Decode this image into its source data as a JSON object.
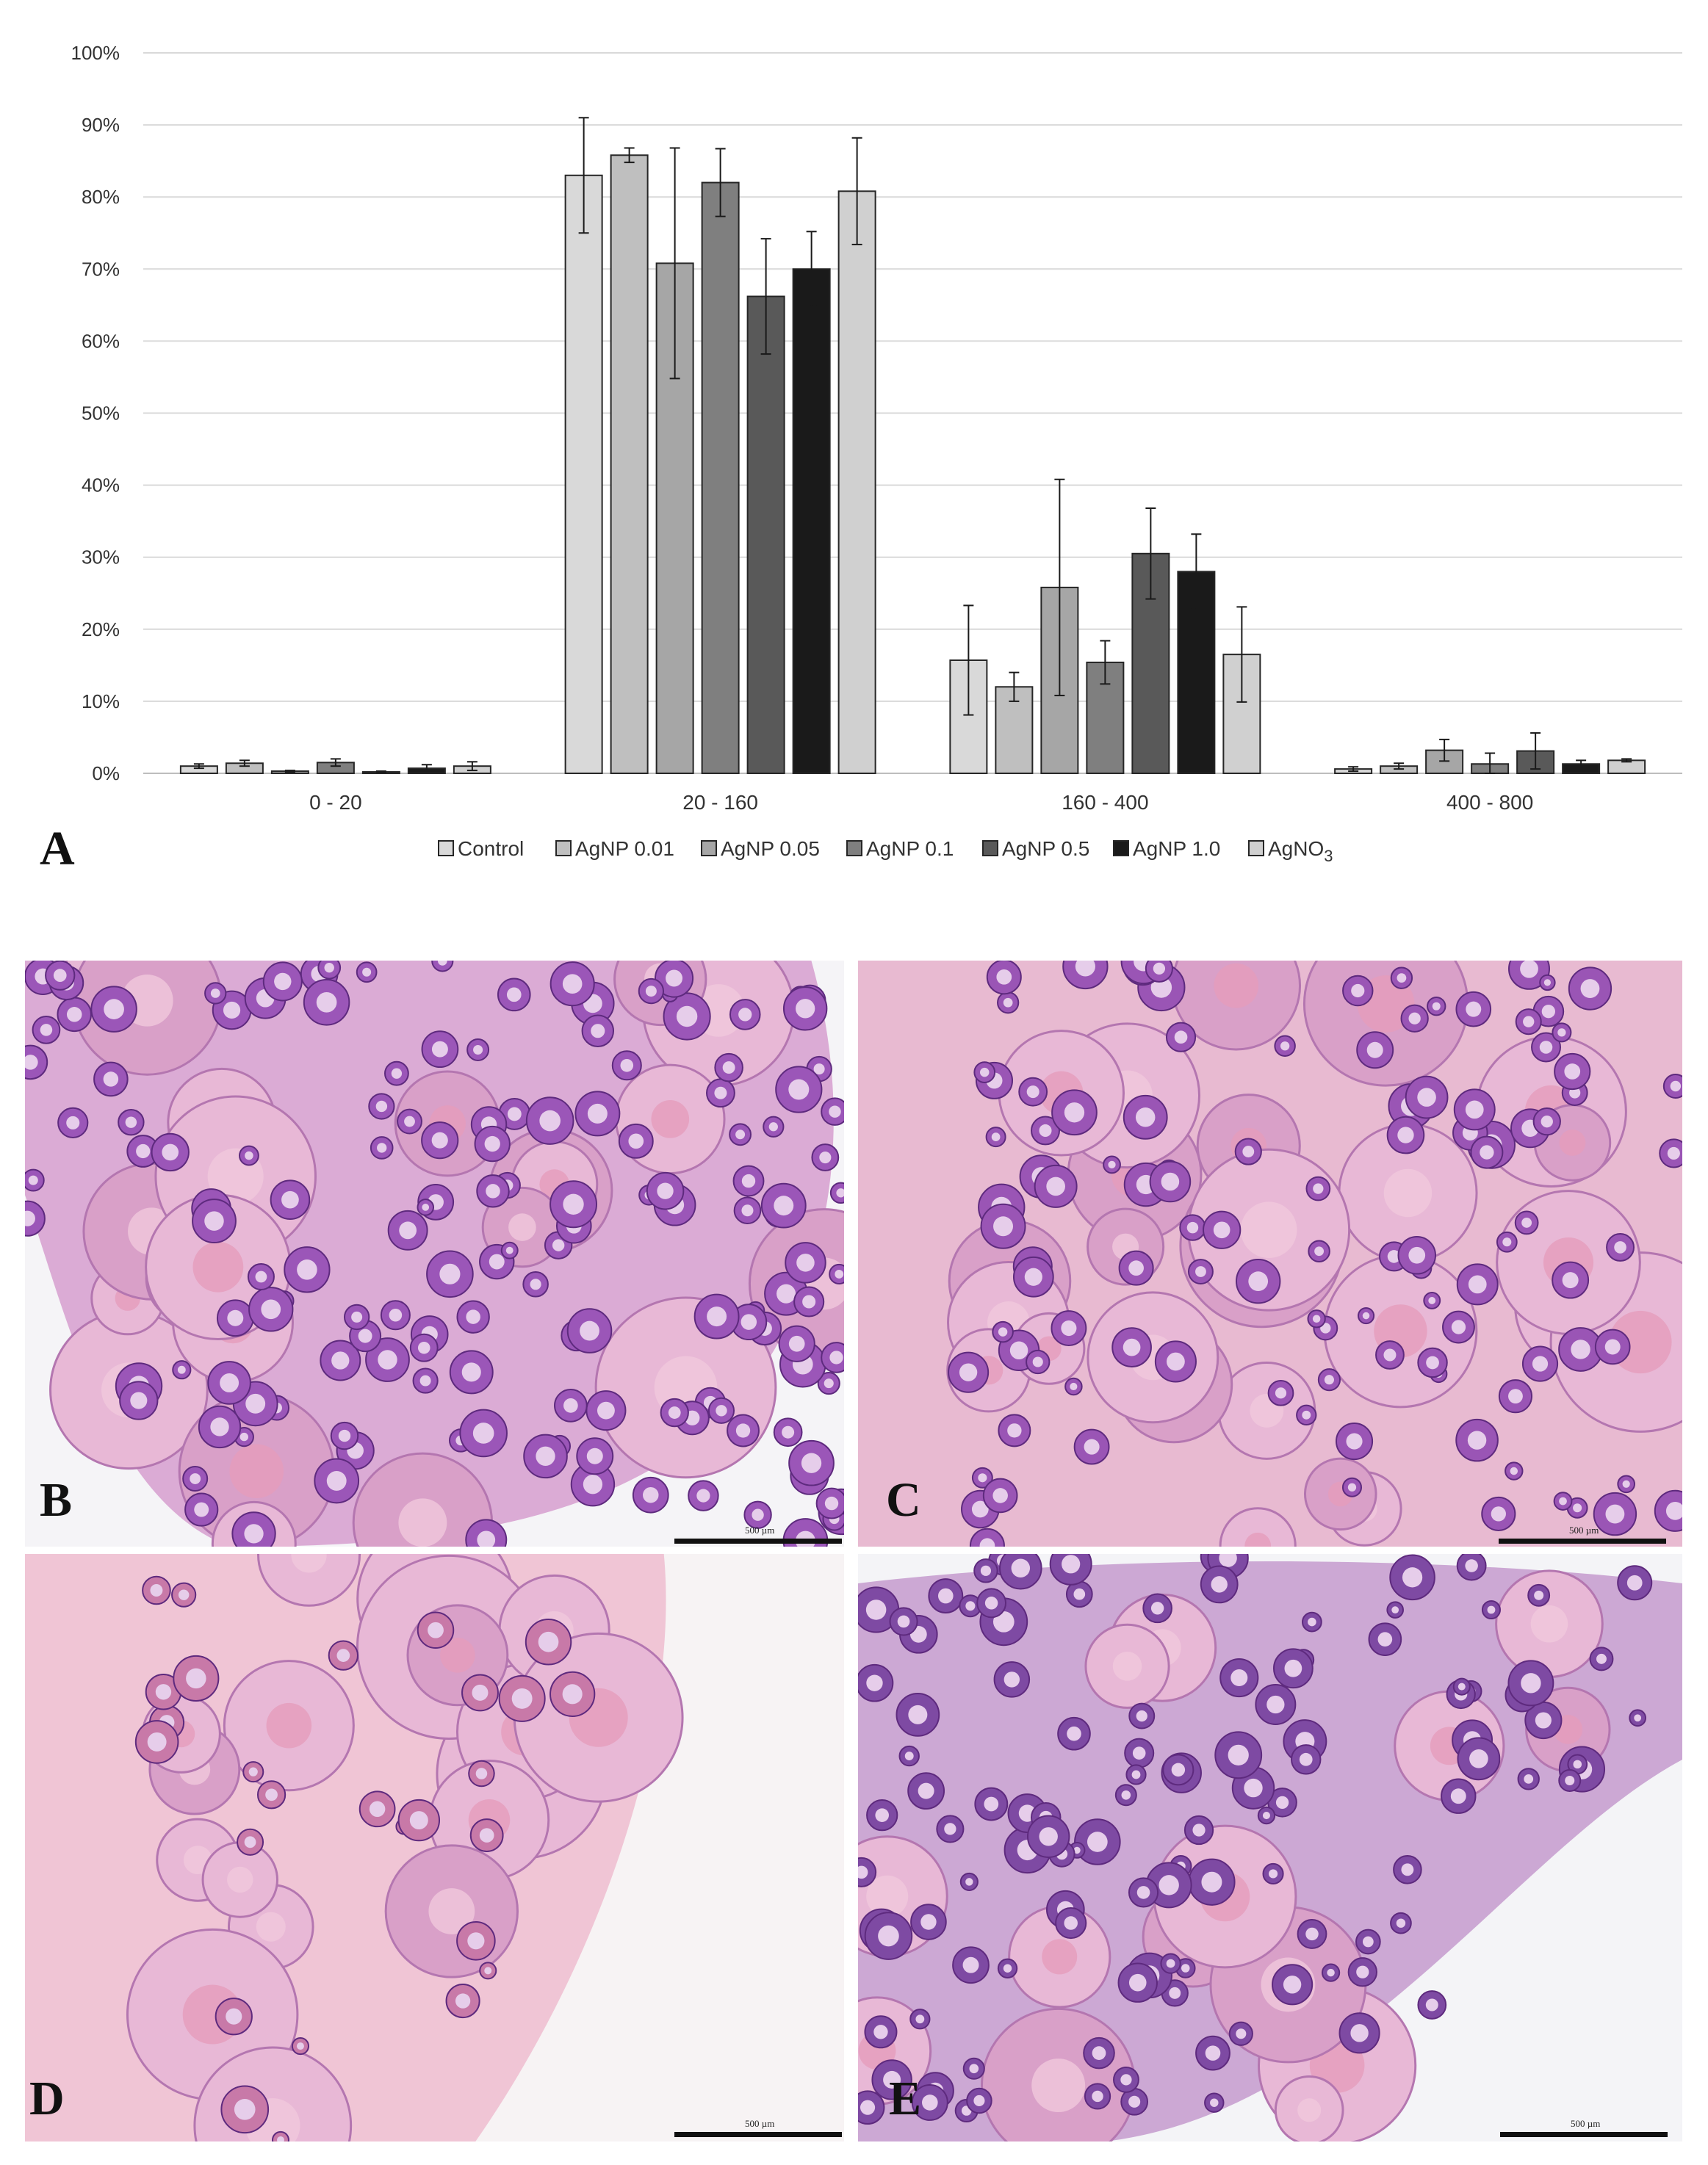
{
  "chart_data": {
    "type": "bar",
    "categories": [
      "0 - 20",
      "20 - 160",
      "160 - 400",
      "400 - 800"
    ],
    "ylim": [
      0,
      100
    ],
    "yticks": [
      "0%",
      "10%",
      "20%",
      "30%",
      "40%",
      "50%",
      "60%",
      "70%",
      "80%",
      "90%",
      "100%"
    ],
    "grid": true,
    "legend_position": "bottom",
    "error_bars": true,
    "series": [
      {
        "name": "Control",
        "color": "#d9d9d9",
        "values": [
          1.0,
          83.0,
          15.7,
          0.6
        ],
        "errors": [
          0.3,
          8.0,
          7.6,
          0.3
        ]
      },
      {
        "name": "AgNP 0.01",
        "color": "#bfbfbf",
        "values": [
          1.4,
          85.8,
          12.0,
          1.0
        ],
        "errors": [
          0.4,
          1.0,
          2.0,
          0.4
        ]
      },
      {
        "name": "AgNP 0.05",
        "color": "#a6a6a6",
        "values": [
          0.3,
          70.8,
          25.8,
          3.2
        ],
        "errors": [
          0.1,
          16.0,
          15.0,
          1.5
        ]
      },
      {
        "name": "AgNP 0.1",
        "color": "#7f7f7f",
        "values": [
          1.5,
          82.0,
          15.4,
          1.3
        ],
        "errors": [
          0.5,
          4.7,
          3.0,
          1.5
        ]
      },
      {
        "name": "AgNP 0.5",
        "color": "#595959",
        "values": [
          0.2,
          66.2,
          30.5,
          3.1
        ],
        "errors": [
          0.1,
          8.0,
          6.3,
          2.5
        ]
      },
      {
        "name": "AgNP 1.0",
        "color": "#1a1a1a",
        "values": [
          0.7,
          70.0,
          28.0,
          1.3
        ],
        "errors": [
          0.5,
          5.2,
          5.2,
          0.5
        ]
      },
      {
        "name": "AgNO3",
        "color": "#d0d0d0",
        "values": [
          1.0,
          80.8,
          16.5,
          1.8
        ],
        "errors": [
          0.6,
          7.4,
          6.6,
          0.2
        ]
      }
    ]
  },
  "legend": [
    {
      "label": "Control"
    },
    {
      "label": "AgNP 0.01"
    },
    {
      "label": "AgNP 0.05"
    },
    {
      "label": "AgNP 0.1"
    },
    {
      "label": "AgNP 0.5"
    },
    {
      "label": "AgNP 1.0"
    },
    {
      "label": "AgNO",
      "sub": "3"
    }
  ],
  "panels": {
    "a": "A",
    "b": "B",
    "c": "C",
    "d": "D",
    "e": "E"
  },
  "scale_bar": "500 µm",
  "colors": {
    "tissue_pink": "#e9a7c7",
    "oocyte_purple": "#8a4aa8",
    "background_light": "#f4f4f6"
  }
}
